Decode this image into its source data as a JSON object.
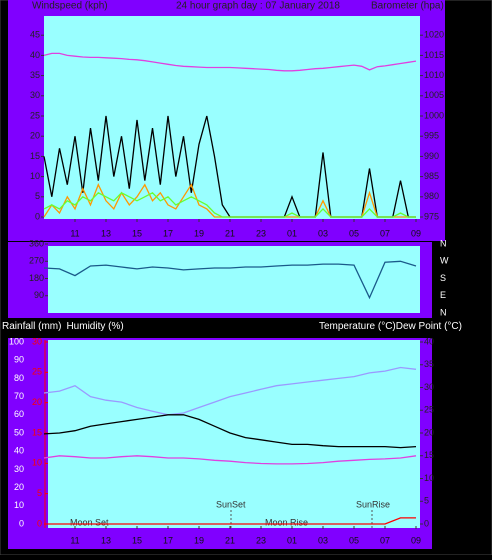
{
  "chart_data": [
    {
      "type": "line",
      "title": "24 hour graph day : 07 January 2018",
      "y_label": "Windspeed (kph)",
      "y2_label": "Barometer (hpa)",
      "x": [
        9,
        9.5,
        10,
        10.5,
        11,
        11.5,
        12,
        12.5,
        13,
        13.5,
        14,
        14.5,
        15,
        15.5,
        16,
        16.5,
        17,
        17.5,
        18,
        18.5,
        19,
        19.5,
        20,
        20.5,
        21,
        21.5,
        22,
        22.5,
        23,
        23.5,
        24,
        24.5,
        25,
        25.5,
        26,
        26.5,
        27,
        27.5,
        28,
        28.5,
        29,
        29.5,
        30,
        30.5,
        31,
        31.5,
        32,
        32.5,
        33
      ],
      "xlim": [
        9,
        33
      ],
      "xticks": [
        11,
        13,
        15,
        17,
        19,
        21,
        23,
        {
          "value": 25,
          "label": "01"
        },
        {
          "value": 27,
          "label": "03"
        },
        {
          "value": 29,
          "label": "05"
        },
        {
          "value": 31,
          "label": "07"
        },
        {
          "value": 33,
          "label": "09"
        }
      ],
      "ylim": [
        0,
        50
      ],
      "yticks": [
        0,
        5,
        10,
        15,
        20,
        25,
        30,
        35,
        40,
        45
      ],
      "y2lim": [
        975,
        1025
      ],
      "y2ticks": [
        975,
        980,
        985,
        990,
        995,
        1000,
        1005,
        1010,
        1015,
        1020
      ],
      "series": [
        {
          "color": "#000000",
          "values": [
            15,
            5,
            17,
            8,
            20,
            6,
            22,
            9,
            25,
            10,
            20,
            7,
            24,
            9,
            22,
            8,
            25,
            10,
            20,
            6,
            18,
            25,
            15,
            3,
            0,
            0,
            0,
            0,
            0,
            0,
            0,
            0,
            5,
            0,
            0,
            0,
            16,
            0,
            0,
            0,
            0,
            0,
            12,
            0,
            0,
            0,
            9,
            0,
            0
          ]
        },
        {
          "color": "#ff9900",
          "values": [
            0,
            3,
            1,
            5,
            2,
            7,
            3,
            8,
            4,
            2,
            6,
            3,
            5,
            8,
            4,
            6,
            3,
            2,
            5,
            8,
            3,
            2,
            0,
            0,
            0,
            0,
            0,
            0,
            0,
            0,
            0,
            0,
            0,
            0,
            0,
            0,
            4,
            0,
            0,
            0,
            0,
            0,
            6,
            0,
            0,
            0,
            0,
            0,
            0
          ]
        },
        {
          "color": "#66ff33",
          "values": [
            2,
            3,
            2,
            4,
            3,
            5,
            4,
            6,
            5,
            4,
            6,
            5,
            4,
            5,
            6,
            4,
            5,
            3,
            4,
            5,
            4,
            3,
            1,
            0,
            0,
            0,
            0,
            0,
            0,
            0,
            0,
            0,
            1,
            0,
            0,
            0,
            2,
            0,
            0,
            0,
            0,
            0,
            2,
            0,
            0,
            0,
            1,
            0,
            0
          ]
        },
        {
          "color": "#e040e0",
          "axis": "y2",
          "values": [
            1015,
            1015.5,
            1015.5,
            1015,
            1014.8,
            1014.6,
            1014.5,
            1014.5,
            1014.4,
            1014.3,
            1014.2,
            1014,
            1013.9,
            1013.7,
            1013.4,
            1013.1,
            1012.8,
            1012.5,
            1012.3,
            1012.2,
            1012.1,
            1012,
            1012,
            1012,
            1012,
            1011.9,
            1011.8,
            1011.7,
            1011.6,
            1011.5,
            1011.3,
            1011.2,
            1011.2,
            1011.3,
            1011.5,
            1011.7,
            1011.8,
            1012,
            1012.2,
            1012.4,
            1012.6,
            1012.3,
            1011.4,
            1012.2,
            1012.4,
            1012.7,
            1013,
            1013.3,
            1013.6
          ]
        }
      ]
    },
    {
      "type": "line",
      "x": [
        9,
        10,
        11,
        12,
        13,
        14,
        15,
        16,
        17,
        18,
        19,
        20,
        21,
        22,
        23,
        24,
        25,
        26,
        27,
        28,
        29,
        30,
        31,
        32,
        33
      ],
      "xlim": [
        9,
        33
      ],
      "ylim": [
        0,
        360
      ],
      "yticks": [
        90,
        180,
        270,
        360
      ],
      "y2lim": [
        0,
        360
      ],
      "y2ticks": [
        {
          "value": 360,
          "label": "N"
        },
        {
          "value": 270,
          "label": "W"
        },
        {
          "value": 180,
          "label": "S"
        },
        {
          "value": 90,
          "label": "E"
        },
        {
          "value": 0,
          "label": "N"
        }
      ],
      "series": [
        {
          "color": "#1a5a8a",
          "values": [
            235,
            230,
            195,
            245,
            250,
            240,
            230,
            240,
            235,
            225,
            230,
            235,
            235,
            240,
            240,
            245,
            250,
            250,
            255,
            255,
            250,
            80,
            265,
            270,
            245
          ]
        }
      ]
    },
    {
      "type": "line",
      "rain_label": "Rainfall (mm)",
      "humidity_label": "Humidity (%)",
      "temp_label": "Temperature (°C)",
      "dew_label": "Dew Point (°C)",
      "x": [
        9,
        10,
        11,
        12,
        13,
        14,
        15,
        16,
        17,
        18,
        19,
        20,
        21,
        22,
        23,
        24,
        25,
        26,
        27,
        28,
        29,
        30,
        31,
        32,
        33
      ],
      "xlim": [
        9,
        33
      ],
      "xticks": [
        11,
        13,
        15,
        17,
        19,
        21,
        23,
        {
          "value": 25,
          "label": "01"
        },
        {
          "value": 27,
          "label": "03"
        },
        {
          "value": 29,
          "label": "05"
        },
        {
          "value": 31,
          "label": "07"
        },
        {
          "value": 33,
          "label": "09"
        }
      ],
      "ylim": [
        0,
        100
      ],
      "yticks": [
        0,
        10,
        20,
        30,
        40,
        50,
        60,
        70,
        80,
        90,
        100
      ],
      "y2lim": [
        0,
        40
      ],
      "y2ticks": [
        0,
        5,
        10,
        15,
        20,
        25,
        30,
        35,
        40
      ],
      "y3lim": [
        0,
        30
      ],
      "y3ticks": [
        0,
        5,
        10,
        15,
        20,
        25,
        30
      ],
      "annotations": [
        "Moon Set",
        "SunSet",
        "Moon Rise",
        "SunRise"
      ],
      "series": [
        {
          "color": "#9a9aff",
          "values": [
            72,
            73,
            76,
            70,
            68,
            67,
            64,
            62,
            60,
            61,
            64,
            67,
            70,
            72,
            74,
            76,
            77,
            78,
            79,
            80,
            81,
            83,
            84,
            86,
            85
          ]
        },
        {
          "color": "#000000",
          "axis": "y2",
          "values": [
            19.8,
            20,
            20.5,
            21.5,
            22,
            22.5,
            23,
            23.5,
            24,
            24,
            23,
            21.5,
            20,
            19,
            18.5,
            18,
            17.5,
            17.5,
            17.2,
            17,
            17,
            17,
            17,
            16.8,
            17
          ]
        },
        {
          "color": "#e040e0",
          "axis": "y2",
          "values": [
            14.5,
            15,
            14.8,
            14.5,
            14.5,
            14.8,
            15,
            14.8,
            14.5,
            14.5,
            14.3,
            14,
            13.8,
            13.5,
            13.3,
            13.2,
            13.2,
            13.3,
            13.5,
            13.8,
            14,
            14.2,
            14.3,
            14.5,
            15
          ]
        },
        {
          "color": "#ff0000",
          "axis": "y3",
          "values": [
            0,
            0,
            0,
            0,
            0,
            0,
            0,
            0,
            0,
            0,
            0,
            0,
            0,
            0,
            0,
            0,
            0,
            0,
            0,
            0,
            0,
            0,
            0,
            1,
            1
          ]
        }
      ]
    }
  ]
}
